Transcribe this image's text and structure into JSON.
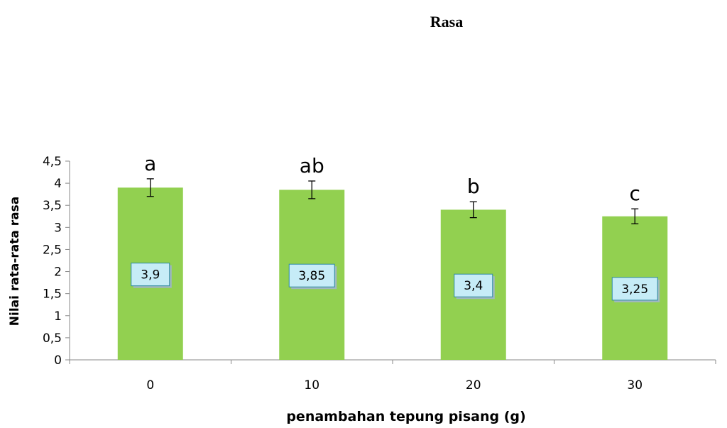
{
  "chart_data": {
    "type": "bar",
    "title": "Rasa",
    "xlabel": "penambahan tepung pisang (g)",
    "ylabel": "Nilai rata-rata rasa",
    "categories": [
      "0",
      "10",
      "20",
      "30"
    ],
    "values": [
      3.9,
      3.85,
      3.4,
      3.25
    ],
    "value_labels": [
      "3,9",
      "3,85",
      "3,4",
      "3,25"
    ],
    "error": [
      0.2,
      0.2,
      0.18,
      0.17
    ],
    "significance_letters": [
      "a",
      "ab",
      "b",
      "c"
    ],
    "ylim": [
      0,
      4.5
    ],
    "yticks": [
      0,
      0.5,
      1,
      1.5,
      2,
      2.5,
      3,
      3.5,
      4,
      4.5
    ],
    "ytick_labels": [
      "0",
      "0,5",
      "1",
      "1,5",
      "2",
      "2,5",
      "3",
      "3,5",
      "4",
      "4,5"
    ],
    "grid": false,
    "legend": "none",
    "colors": {
      "bar": "#92d050",
      "label_box_fill": "#c6ecf7",
      "label_box_border": "#2e8aa0"
    }
  }
}
